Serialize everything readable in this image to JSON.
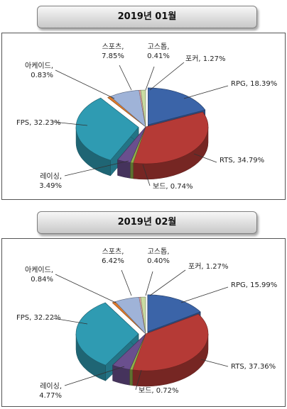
{
  "chart_data": [
    {
      "type": "pie",
      "title": "2019년 01월",
      "slices": [
        {
          "name": "RPG",
          "value": 18.39,
          "label_lines": [
            "RPG, 18.39%"
          ]
        },
        {
          "name": "RTS",
          "value": 34.79,
          "label_lines": [
            "RTS, 34.79%"
          ]
        },
        {
          "name": "보드",
          "value": 0.74,
          "label_lines": [
            "보드, 0.74%"
          ]
        },
        {
          "name": "레이싱",
          "value": 3.49,
          "label_lines": [
            "레이싱,",
            "3.49%"
          ]
        },
        {
          "name": "FPS",
          "value": 32.23,
          "label_lines": [
            "FPS, 32.23%"
          ]
        },
        {
          "name": "아케이드",
          "value": 0.83,
          "label_lines": [
            "아케이드,",
            "0.83%"
          ]
        },
        {
          "name": "스포츠",
          "value": 7.85,
          "label_lines": [
            "스포츠,",
            "7.85%"
          ]
        },
        {
          "name": "고스톱",
          "value": 0.41,
          "label_lines": [
            "고스톱,",
            "0.41%"
          ]
        },
        {
          "name": "포커",
          "value": 1.27,
          "label_lines": [
            "포커, 1.27%"
          ]
        }
      ]
    },
    {
      "type": "pie",
      "title": "2019년 02월",
      "slices": [
        {
          "name": "RPG",
          "value": 15.99,
          "label_lines": [
            "RPG, 15.99%"
          ]
        },
        {
          "name": "RTS",
          "value": 37.36,
          "label_lines": [
            "RTS, 37.36%"
          ]
        },
        {
          "name": "보드",
          "value": 0.72,
          "label_lines": [
            "보드, 0.72%"
          ]
        },
        {
          "name": "레이싱",
          "value": 4.77,
          "label_lines": [
            "레이싱,",
            "4.77%"
          ]
        },
        {
          "name": "FPS",
          "value": 32.22,
          "label_lines": [
            "FPS, 32.22%"
          ]
        },
        {
          "name": "아케이드",
          "value": 0.84,
          "label_lines": [
            "아케이드,",
            "0.84%"
          ]
        },
        {
          "name": "스포츠",
          "value": 6.42,
          "label_lines": [
            "스포츠,",
            "6.42%"
          ]
        },
        {
          "name": "고스톱",
          "value": 0.4,
          "label_lines": [
            "고스톱,",
            "0.40%"
          ]
        },
        {
          "name": "포커",
          "value": 1.27,
          "label_lines": [
            "포커, 1.27%"
          ]
        }
      ]
    }
  ],
  "colors": {
    "RPG": "#3b64a8",
    "RTS": "#b53a36",
    "보드": "#8fb04a",
    "레이싱": "#6a4f8e",
    "FPS": "#2f9bb2",
    "아케이드": "#e07a28",
    "스포츠": "#9fb3d8",
    "고스톱": "#e8a8a6",
    "포커": "#c9dca2"
  }
}
